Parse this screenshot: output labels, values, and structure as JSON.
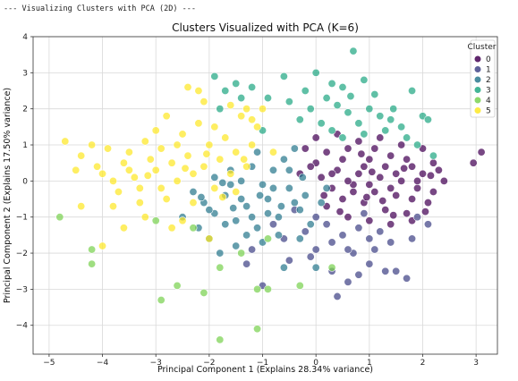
{
  "console_line": "--- Visualizing Clusters with PCA (2D) ---",
  "chart_data": {
    "type": "scatter",
    "title": "Clusters Visualized with PCA (K=6)",
    "xlabel": "Principal Component 1 (Explains 28.34% variance)",
    "ylabel": "Principal Component 2 (Explains 17.50% variance)",
    "xlim": [
      -5.3,
      3.4
    ],
    "ylim": [
      -4.8,
      4.0
    ],
    "xticks": [
      -5,
      -4,
      -3,
      -2,
      -1,
      0,
      1,
      2,
      3
    ],
    "yticks": [
      -4,
      -3,
      -2,
      -1,
      0,
      1,
      2,
      3,
      4
    ],
    "grid": true,
    "legend": {
      "title": "Cluster",
      "placement": "top-right"
    },
    "series": [
      {
        "name": "0",
        "color": "#440154",
        "points": [
          [
            0.0,
            0.5
          ],
          [
            0.2,
            0.8
          ],
          [
            0.4,
            0.3
          ],
          [
            0.6,
            0.9
          ],
          [
            0.8,
            0.2
          ],
          [
            1.0,
            0.6
          ],
          [
            1.2,
            0.1
          ],
          [
            1.4,
            0.7
          ],
          [
            1.6,
            0.0
          ],
          [
            1.8,
            0.4
          ],
          [
            2.0,
            0.2
          ],
          [
            2.2,
            0.5
          ],
          [
            2.4,
            0.0
          ],
          [
            0.3,
            -0.2
          ],
          [
            0.5,
            -0.5
          ],
          [
            0.7,
            -0.1
          ],
          [
            0.9,
            -0.6
          ],
          [
            1.1,
            -0.3
          ],
          [
            1.3,
            -0.8
          ],
          [
            1.5,
            -0.4
          ],
          [
            1.7,
            -0.9
          ],
          [
            1.9,
            -0.2
          ],
          [
            2.1,
            -0.6
          ],
          [
            0.1,
            0.1
          ],
          [
            -0.1,
            0.4
          ],
          [
            -0.2,
            0.9
          ],
          [
            0.0,
            1.2
          ],
          [
            0.4,
            1.3
          ],
          [
            0.8,
            1.1
          ],
          [
            1.2,
            1.2
          ],
          [
            1.6,
            1.0
          ],
          [
            2.0,
            0.9
          ],
          [
            0.6,
            0.0
          ],
          [
            1.0,
            -0.1
          ],
          [
            1.4,
            -0.2
          ],
          [
            1.8,
            -0.5
          ],
          [
            0.2,
            -0.7
          ],
          [
            0.6,
            -1.0
          ],
          [
            1.0,
            -1.1
          ],
          [
            1.4,
            -1.2
          ],
          [
            1.8,
            -1.1
          ],
          [
            2.2,
            -0.3
          ],
          [
            2.3,
            0.3
          ],
          [
            3.1,
            0.8
          ],
          [
            2.95,
            0.5
          ],
          [
            0.9,
            0.4
          ],
          [
            1.3,
            0.4
          ],
          [
            1.7,
            0.6
          ],
          [
            0.5,
            0.6
          ],
          [
            1.1,
            0.9
          ],
          [
            0.3,
            0.2
          ],
          [
            0.7,
            -0.3
          ],
          [
            1.5,
            0.2
          ],
          [
            1.9,
            0.0
          ],
          [
            0.15,
            -0.4
          ],
          [
            1.25,
            -0.55
          ],
          [
            0.85,
            0.75
          ],
          [
            1.45,
            -0.95
          ],
          [
            2.05,
            -0.85
          ],
          [
            -0.3,
            0.2
          ],
          [
            1.05,
            0.25
          ],
          [
            0.45,
            -0.85
          ],
          [
            1.65,
            0.35
          ],
          [
            0.95,
            -0.45
          ],
          [
            2.15,
            0.15
          ]
        ]
      },
      {
        "name": "1",
        "color": "#414487",
        "points": [
          [
            -1.0,
            -2.9
          ],
          [
            -0.5,
            -2.2
          ],
          [
            0.0,
            -1.9
          ],
          [
            0.3,
            -2.5
          ],
          [
            0.7,
            -2.0
          ],
          [
            1.0,
            -1.6
          ],
          [
            1.3,
            -2.5
          ],
          [
            1.5,
            -2.5
          ],
          [
            1.7,
            -2.7
          ],
          [
            0.6,
            -2.8
          ],
          [
            0.4,
            -3.2
          ],
          [
            -1.2,
            -1.9
          ],
          [
            -1.3,
            -2.3
          ],
          [
            -0.2,
            -1.4
          ],
          [
            0.2,
            -1.2
          ],
          [
            0.5,
            -1.5
          ],
          [
            0.8,
            -1.3
          ],
          [
            1.1,
            -1.9
          ],
          [
            1.4,
            -1.7
          ],
          [
            1.8,
            -1.6
          ],
          [
            1.9,
            -1.0
          ],
          [
            2.1,
            -1.2
          ],
          [
            -0.6,
            -1.6
          ],
          [
            -0.8,
            -1.2
          ],
          [
            0.9,
            -0.9
          ],
          [
            1.2,
            -1.4
          ],
          [
            -0.4,
            -0.8
          ],
          [
            0.0,
            -1.0
          ],
          [
            0.6,
            -1.9
          ],
          [
            1.0,
            -2.3
          ],
          [
            0.8,
            -2.6
          ],
          [
            -0.1,
            -2.1
          ],
          [
            0.3,
            -1.7
          ]
        ]
      },
      {
        "name": "2",
        "color": "#2a788e",
        "points": [
          [
            -2.3,
            -0.3
          ],
          [
            -2.1,
            -0.6
          ],
          [
            -1.9,
            -0.9
          ],
          [
            -1.7,
            -0.4
          ],
          [
            -1.5,
            -1.1
          ],
          [
            -1.3,
            -0.7
          ],
          [
            -1.1,
            -1.3
          ],
          [
            -0.9,
            -0.5
          ],
          [
            -0.7,
            -1.0
          ],
          [
            -0.5,
            -0.2
          ],
          [
            -0.3,
            -0.8
          ],
          [
            -0.1,
            -1.2
          ],
          [
            0.1,
            -0.6
          ],
          [
            -1.6,
            0.3
          ],
          [
            -1.4,
            0.0
          ],
          [
            -1.2,
            0.4
          ],
          [
            -1.0,
            -0.1
          ],
          [
            -0.8,
            0.3
          ],
          [
            -0.6,
            0.6
          ],
          [
            -0.4,
            0.9
          ],
          [
            -2.5,
            -1.0
          ],
          [
            -2.0,
            -1.6
          ],
          [
            -1.8,
            -2.0
          ],
          [
            -1.5,
            -1.8
          ],
          [
            -1.0,
            -1.7
          ],
          [
            -0.6,
            -2.4
          ],
          [
            -1.6,
            -0.1
          ],
          [
            -1.9,
            0.1
          ],
          [
            -2.2,
            -1.3
          ],
          [
            -1.4,
            -0.5
          ],
          [
            -0.9,
            -0.9
          ],
          [
            -0.2,
            -0.4
          ],
          [
            0.2,
            -0.2
          ],
          [
            -1.1,
            0.8
          ],
          [
            -0.7,
            -1.5
          ],
          [
            -0.3,
            -1.6
          ],
          [
            0.0,
            -2.4
          ],
          [
            -1.3,
            -1.5
          ],
          [
            -1.7,
            -1.2
          ],
          [
            -2.0,
            -0.8
          ],
          [
            -0.5,
            0.3
          ],
          [
            -0.8,
            -0.2
          ],
          [
            -1.2,
            -1.0
          ],
          [
            -0.4,
            -0.6
          ],
          [
            -1.55,
            -0.75
          ],
          [
            -1.05,
            -0.4
          ],
          [
            -0.25,
            0.1
          ],
          [
            -1.75,
            -0.05
          ],
          [
            -2.15,
            -0.45
          ],
          [
            -0.65,
            -0.7
          ]
        ]
      },
      {
        "name": "3",
        "color": "#22a884",
        "points": [
          [
            -1.9,
            2.9
          ],
          [
            -1.7,
            2.5
          ],
          [
            -1.5,
            2.7
          ],
          [
            -1.2,
            2.6
          ],
          [
            -0.6,
            2.9
          ],
          [
            -0.2,
            2.5
          ],
          [
            0.0,
            3.0
          ],
          [
            0.3,
            2.7
          ],
          [
            0.5,
            2.6
          ],
          [
            0.7,
            3.6
          ],
          [
            0.9,
            2.8
          ],
          [
            1.1,
            2.4
          ],
          [
            0.4,
            2.1
          ],
          [
            0.6,
            1.9
          ],
          [
            0.8,
            1.6
          ],
          [
            1.0,
            2.0
          ],
          [
            1.2,
            1.8
          ],
          [
            1.4,
            1.7
          ],
          [
            1.6,
            1.5
          ],
          [
            1.8,
            2.5
          ],
          [
            2.0,
            1.8
          ],
          [
            2.1,
            1.7
          ],
          [
            -0.1,
            2.0
          ],
          [
            0.1,
            1.6
          ],
          [
            0.3,
            1.4
          ],
          [
            0.5,
            1.2
          ],
          [
            -0.3,
            1.7
          ],
          [
            -0.9,
            2.3
          ],
          [
            -1.8,
            2.0
          ],
          [
            -1.0,
            1.4
          ],
          [
            1.3,
            1.4
          ],
          [
            1.7,
            1.2
          ],
          [
            1.9,
            1.0
          ],
          [
            -0.5,
            2.2
          ],
          [
            0.2,
            2.3
          ],
          [
            0.9,
            1.3
          ],
          [
            -1.4,
            2.3
          ],
          [
            0.65,
            2.35
          ],
          [
            1.45,
            2.0
          ],
          [
            2.2,
            0.7
          ]
        ]
      },
      {
        "name": "4",
        "color": "#7ad151",
        "points": [
          [
            -4.8,
            -1.0
          ],
          [
            -4.2,
            -1.9
          ],
          [
            -4.2,
            -2.3
          ],
          [
            -2.9,
            -3.3
          ],
          [
            -2.6,
            -2.9
          ],
          [
            -2.1,
            -3.1
          ],
          [
            -1.8,
            -2.4
          ],
          [
            -1.8,
            -4.4
          ],
          [
            -1.1,
            -4.1
          ],
          [
            -1.1,
            -3.0
          ],
          [
            -0.9,
            -3.0
          ],
          [
            -0.3,
            -2.9
          ],
          [
            0.3,
            -2.4
          ],
          [
            -0.9,
            -1.6
          ],
          [
            -2.3,
            -1.3
          ],
          [
            -3.0,
            -1.1
          ],
          [
            -1.4,
            -2.0
          ]
        ]
      },
      {
        "name": "5",
        "color": "#fde725",
        "points": [
          [
            -4.7,
            1.1
          ],
          [
            -4.4,
            0.7
          ],
          [
            -4.2,
            1.0
          ],
          [
            -4.1,
            0.4
          ],
          [
            -4.0,
            0.2
          ],
          [
            -3.9,
            0.9
          ],
          [
            -3.8,
            0.0
          ],
          [
            -3.7,
            -0.3
          ],
          [
            -3.6,
            0.5
          ],
          [
            -3.5,
            0.8
          ],
          [
            -3.4,
            0.1
          ],
          [
            -3.3,
            -0.2
          ],
          [
            -3.2,
            1.1
          ],
          [
            -3.1,
            0.6
          ],
          [
            -3.0,
            0.3
          ],
          [
            -2.9,
            0.9
          ],
          [
            -2.8,
            -0.5
          ],
          [
            -2.7,
            0.5
          ],
          [
            -2.6,
            0.0
          ],
          [
            -2.5,
            1.3
          ],
          [
            -2.4,
            0.7
          ],
          [
            -2.3,
            -0.6
          ],
          [
            -2.2,
            1.6
          ],
          [
            -2.1,
            0.4
          ],
          [
            -2.0,
            1.0
          ],
          [
            -1.9,
            -0.2
          ],
          [
            -1.8,
            0.6
          ],
          [
            -1.7,
            1.2
          ],
          [
            -1.6,
            0.2
          ],
          [
            -1.5,
            0.8
          ],
          [
            -1.4,
            1.8
          ],
          [
            -1.3,
            0.4
          ],
          [
            -1.2,
            1.0
          ],
          [
            -1.1,
            1.5
          ],
          [
            -2.4,
            2.6
          ],
          [
            -2.2,
            2.5
          ],
          [
            -2.1,
            2.2
          ],
          [
            -1.6,
            2.1
          ],
          [
            -1.3,
            2.0
          ],
          [
            -1.2,
            1.7
          ],
          [
            -3.0,
            1.4
          ],
          [
            -3.2,
            -1.0
          ],
          [
            -2.7,
            -1.3
          ],
          [
            -2.5,
            -1.1
          ],
          [
            -2.0,
            -1.6
          ],
          [
            -4.4,
            -0.7
          ],
          [
            -4.0,
            -1.8
          ],
          [
            -3.6,
            -1.3
          ],
          [
            -3.3,
            -0.6
          ],
          [
            -2.9,
            -0.2
          ],
          [
            -1.0,
            2.0
          ],
          [
            -0.8,
            0.8
          ],
          [
            -2.6,
            1.0
          ],
          [
            -2.3,
            0.2
          ],
          [
            -1.9,
            1.5
          ],
          [
            -1.5,
            -0.3
          ],
          [
            -2.8,
            1.8
          ],
          [
            -3.5,
            0.3
          ],
          [
            -4.5,
            0.3
          ],
          [
            -3.8,
            -0.7
          ],
          [
            -2.05,
            0.75
          ],
          [
            -1.35,
            0.6
          ],
          [
            -2.45,
            0.35
          ],
          [
            -1.75,
            -0.45
          ],
          [
            -3.15,
            0.15
          ]
        ]
      }
    ]
  }
}
